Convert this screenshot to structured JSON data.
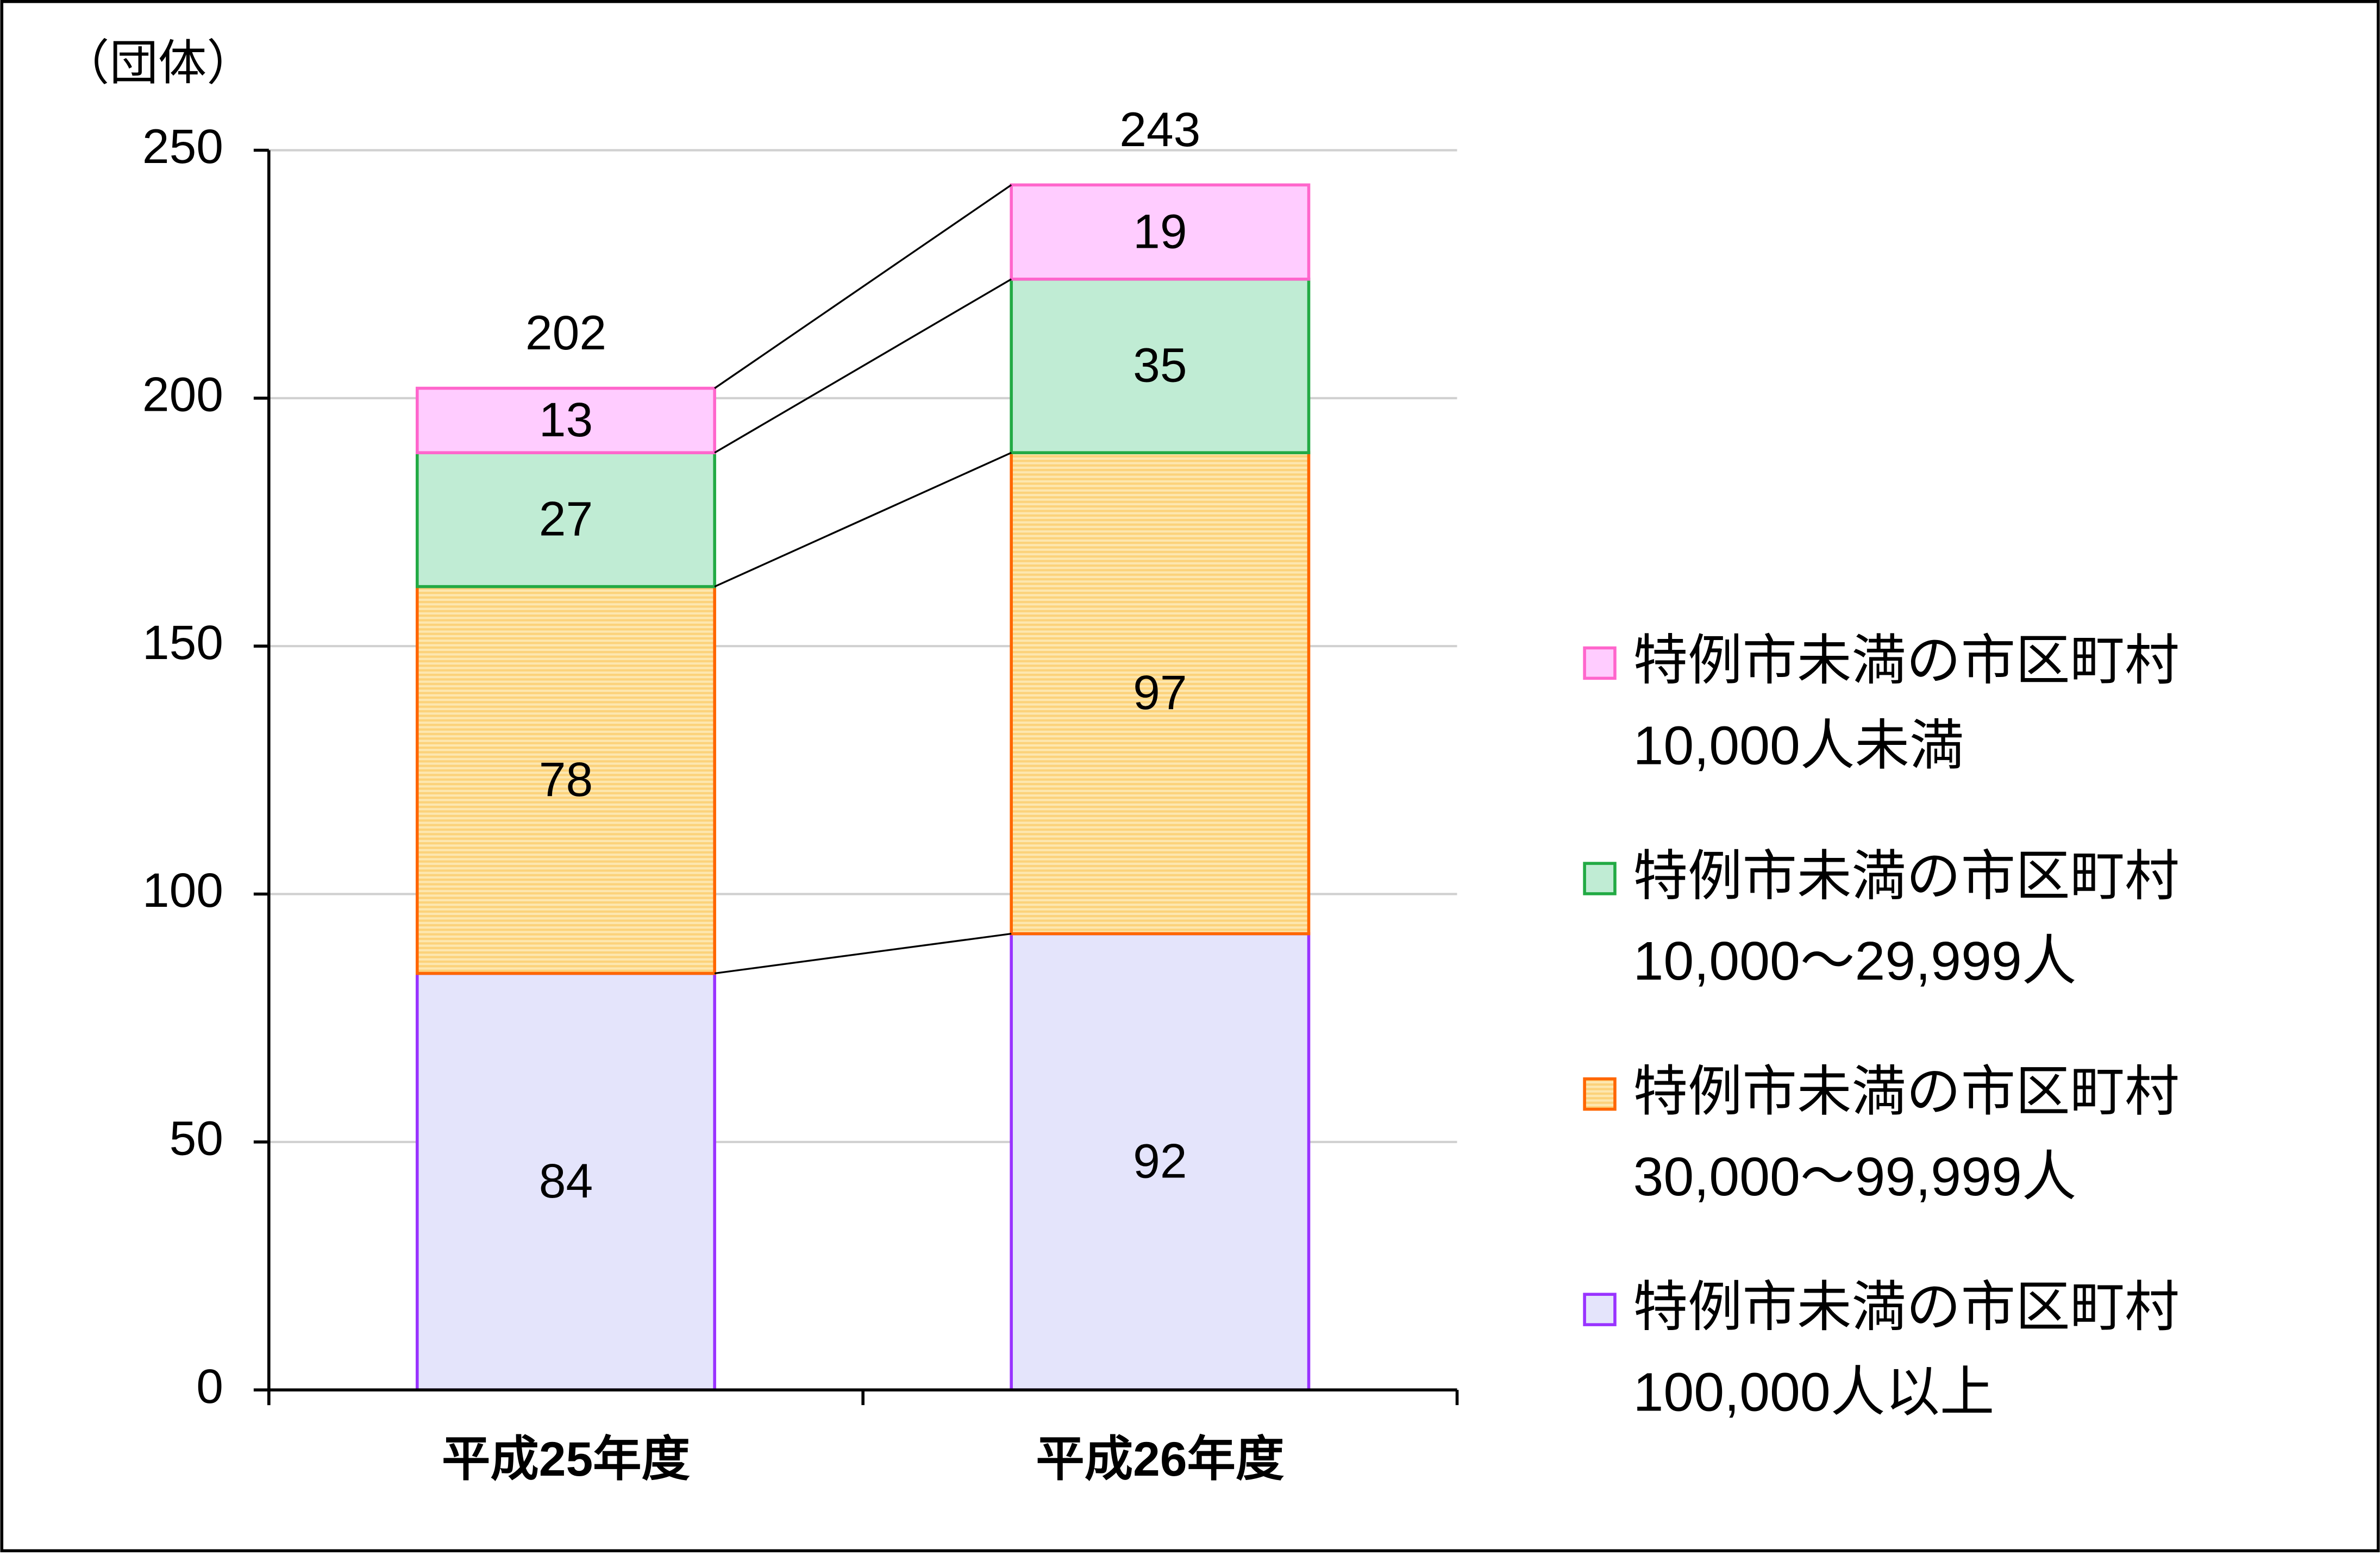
{
  "chart_data": {
    "type": "stacked-bar",
    "y_label": "（団体）",
    "categories": [
      "平成25年度",
      "平成26年度"
    ],
    "series": [
      {
        "name": "特例市未満の市区町村\n100,000人以上",
        "color": "#e4e4fb",
        "edgecolor": "#9933ff",
        "values": [
          84,
          92
        ]
      },
      {
        "name": "特例市未満の市区町村\n30,000～99,999人",
        "color": "#fdd98a",
        "edgecolor": "#ff6600",
        "values": [
          78,
          97
        ]
      },
      {
        "name": "特例市未満の市区町村\n10,000～29,999人",
        "color": "#c0ecd4",
        "edgecolor": "#22aa44",
        "values": [
          27,
          35
        ]
      },
      {
        "name": "特例市未満の市区町村\n10,000人未満",
        "color": "#ffccff",
        "edgecolor": "#ff66cc",
        "values": [
          13,
          19
        ]
      }
    ],
    "totals": [
      202,
      243
    ],
    "ylim": [
      0,
      250
    ],
    "yticks": [
      0,
      50,
      100,
      150,
      200,
      250
    ],
    "grid": true,
    "legend": "right"
  }
}
